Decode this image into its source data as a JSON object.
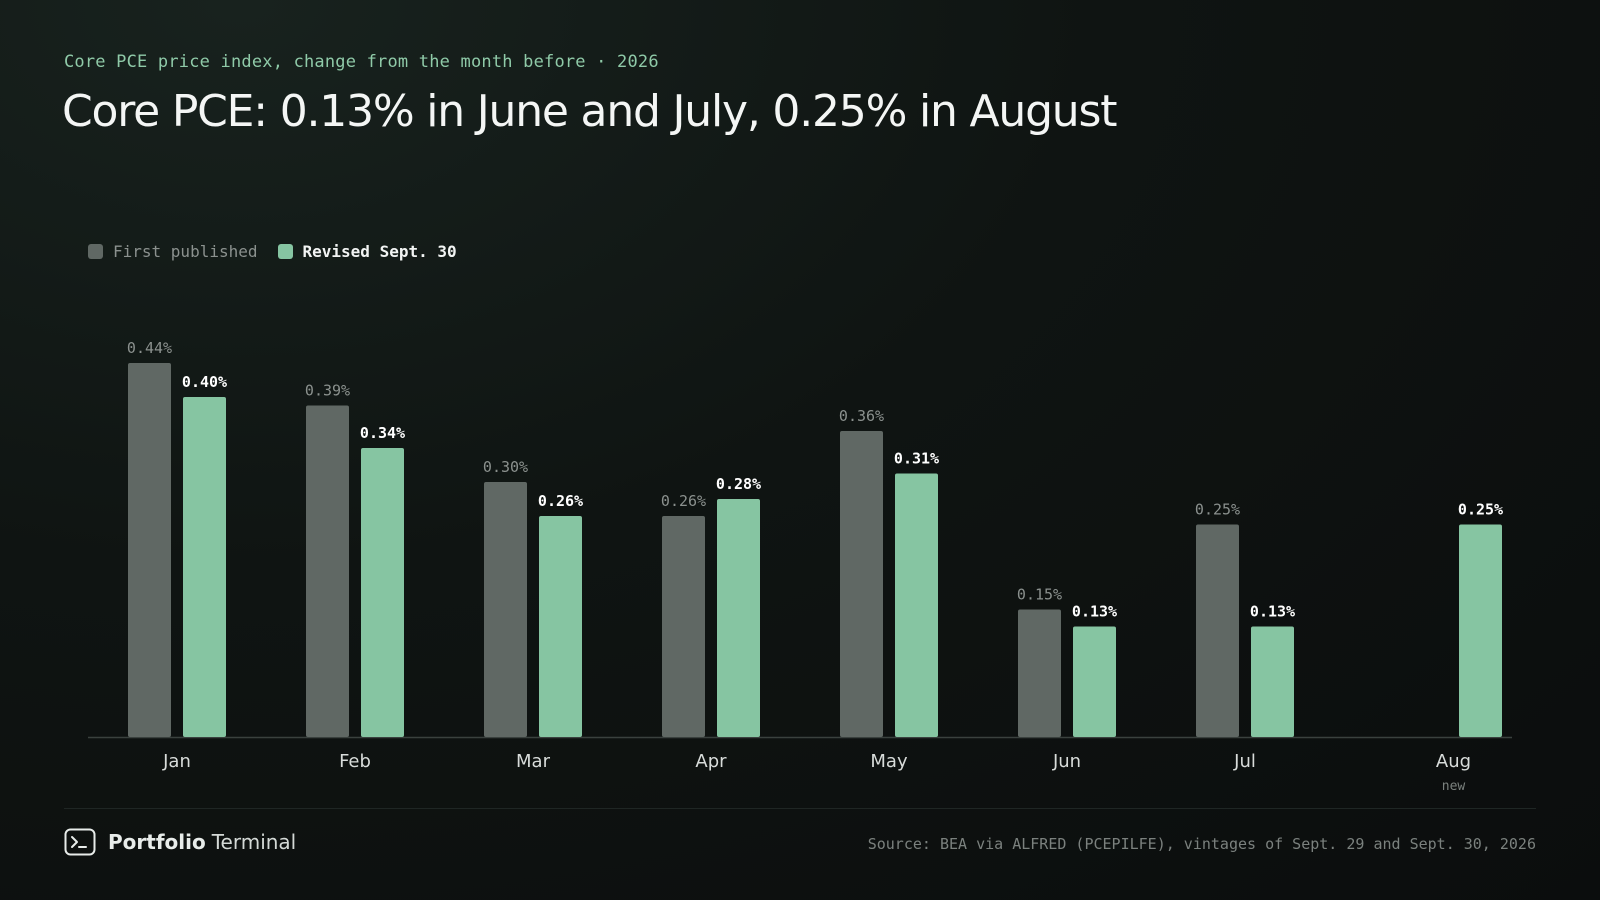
{
  "header": {
    "subtitle": "Core PCE price index, change from the month before · 2026",
    "title": "Core PCE: 0.13% in June and July, 0.25% in August"
  },
  "legend": {
    "first_label": "First published",
    "revised_label": "Revised Sept. 30"
  },
  "colors": {
    "first": "#606864",
    "revised": "#86c5a2",
    "first_label": "#8b918e",
    "revised_label": "#ffffff",
    "axis": "#3a413e",
    "tick": "#d8dcda"
  },
  "chart_data": {
    "type": "bar",
    "categories": [
      "Jan",
      "Feb",
      "Mar",
      "Apr",
      "May",
      "Jun",
      "Jul",
      "Aug"
    ],
    "category_notes": [
      "",
      "",
      "",
      "",
      "",
      "",
      "",
      "new"
    ],
    "series": [
      {
        "name": "First published",
        "values": [
          0.44,
          0.39,
          0.3,
          0.26,
          0.36,
          0.15,
          0.25,
          null
        ],
        "labels": [
          "0.44%",
          "0.39%",
          "0.30%",
          "0.26%",
          "0.36%",
          "0.15%",
          "0.25%",
          ""
        ]
      },
      {
        "name": "Revised Sept. 30",
        "values": [
          0.4,
          0.34,
          0.26,
          0.28,
          0.31,
          0.13,
          0.13,
          0.25
        ],
        "labels": [
          "0.40%",
          "0.34%",
          "0.26%",
          "0.28%",
          "0.31%",
          "0.13%",
          "0.13%",
          "0.25%"
        ]
      }
    ],
    "ylim": [
      0,
      0.44
    ],
    "grid": false,
    "legend_position": "top-left",
    "title": "Core PCE: 0.13% in June and July, 0.25% in August",
    "xlabel": "",
    "ylabel": ""
  },
  "footer": {
    "brand_strong": "Portfolio",
    "brand_light": "Terminal",
    "brand_icon": "terminal-icon",
    "source": "Source: BEA via ALFRED (PCEPILFE), vintages of Sept. 29 and Sept. 30, 2026"
  }
}
